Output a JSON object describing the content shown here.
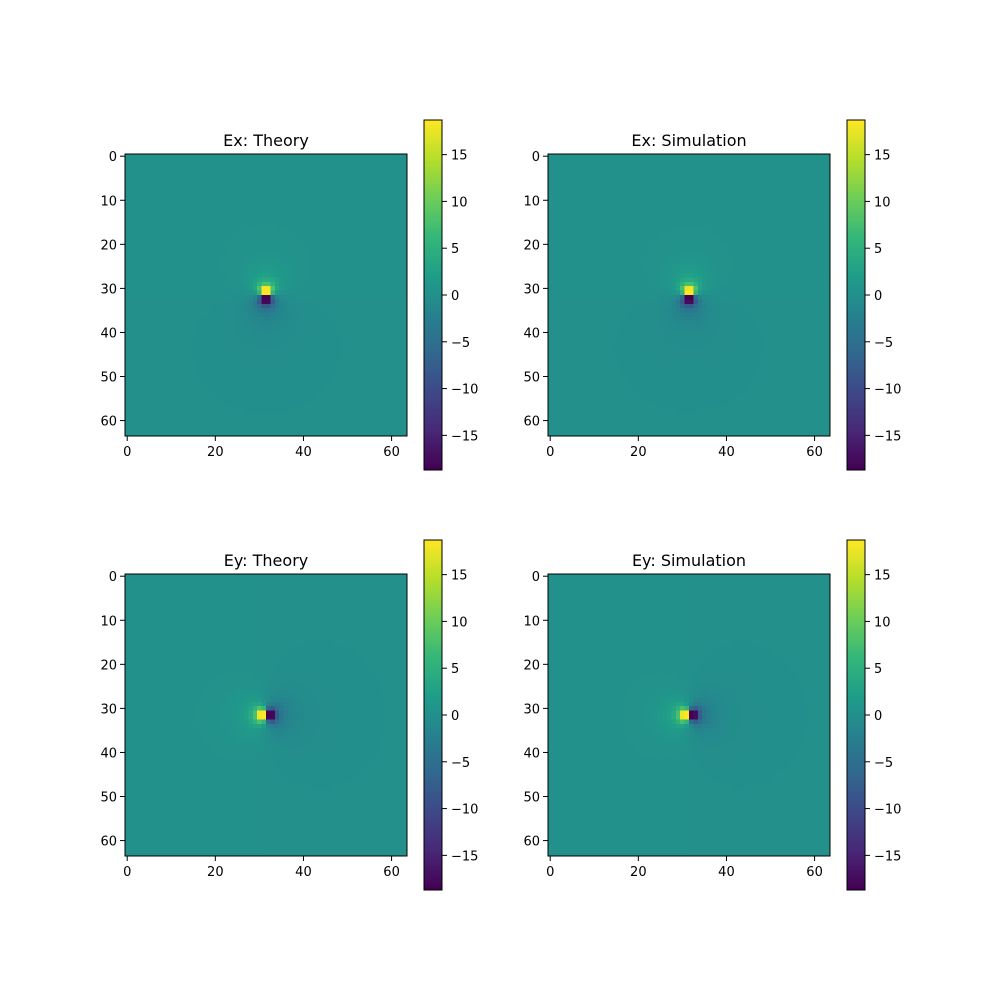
{
  "figure": {
    "background": "#ffffff"
  },
  "colormap": {
    "name": "viridis",
    "stops": [
      "#440154",
      "#482878",
      "#3e4989",
      "#31688e",
      "#26828e",
      "#1f9e89",
      "#35b779",
      "#6ece58",
      "#b5de2b",
      "#fde725"
    ]
  },
  "chart_data": [
    {
      "type": "heatmap",
      "title": "Ex: Theory",
      "field": "Ex",
      "source": "theory",
      "grid_size": [
        64,
        64
      ],
      "source_position": [
        31.5,
        31.5
      ],
      "peak_positive": [
        31,
        29
      ],
      "peak_negative": [
        31,
        34
      ],
      "x_ticks": [
        0,
        20,
        40,
        60
      ],
      "y_ticks": [
        0,
        10,
        20,
        30,
        40,
        50,
        60
      ],
      "colorbar": {
        "range": [
          -18.7,
          18.7
        ],
        "ticks": [
          15,
          10,
          5,
          0,
          -5,
          -10,
          -15
        ],
        "tick_labels": [
          "15",
          "10",
          "5",
          "0",
          "−5",
          "−10",
          "−15"
        ]
      }
    },
    {
      "type": "heatmap",
      "title": "Ex: Simulation",
      "field": "Ex",
      "source": "simulation",
      "grid_size": [
        64,
        64
      ],
      "source_position": [
        31.5,
        31.5
      ],
      "peak_positive": [
        31,
        29
      ],
      "peak_negative": [
        31,
        34
      ],
      "x_ticks": [
        0,
        20,
        40,
        60
      ],
      "y_ticks": [
        0,
        10,
        20,
        30,
        40,
        50,
        60
      ],
      "colorbar": {
        "range": [
          -18.7,
          18.7
        ],
        "ticks": [
          15,
          10,
          5,
          0,
          -5,
          -10,
          -15
        ],
        "tick_labels": [
          "15",
          "10",
          "5",
          "0",
          "−5",
          "−10",
          "−15"
        ]
      }
    },
    {
      "type": "heatmap",
      "title": "Ey: Theory",
      "field": "Ey",
      "source": "theory",
      "grid_size": [
        64,
        64
      ],
      "source_position": [
        31.5,
        31.5
      ],
      "peak_positive": [
        29,
        31
      ],
      "peak_negative": [
        34,
        31
      ],
      "x_ticks": [
        0,
        20,
        40,
        60
      ],
      "y_ticks": [
        0,
        10,
        20,
        30,
        40,
        50,
        60
      ],
      "colorbar": {
        "range": [
          -18.7,
          18.7
        ],
        "ticks": [
          15,
          10,
          5,
          0,
          -5,
          -10,
          -15
        ],
        "tick_labels": [
          "15",
          "10",
          "5",
          "0",
          "−5",
          "−10",
          "−15"
        ]
      }
    },
    {
      "type": "heatmap",
      "title": "Ey: Simulation",
      "field": "Ey",
      "source": "simulation",
      "grid_size": [
        64,
        64
      ],
      "source_position": [
        31.5,
        31.5
      ],
      "peak_positive": [
        29,
        31
      ],
      "peak_negative": [
        34,
        31
      ],
      "x_ticks": [
        0,
        20,
        40,
        60
      ],
      "y_ticks": [
        0,
        10,
        20,
        30,
        40,
        50,
        60
      ],
      "colorbar": {
        "range": [
          -18.7,
          18.7
        ],
        "ticks": [
          15,
          10,
          5,
          0,
          -5,
          -10,
          -15
        ],
        "tick_labels": [
          "15",
          "10",
          "5",
          "0",
          "−5",
          "−10",
          "−15"
        ]
      }
    }
  ]
}
